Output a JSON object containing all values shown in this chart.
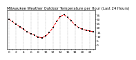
{
  "title": "Milwaukee Weather Outdoor Temperature per Hour (Last 24 Hours)",
  "hours": [
    0,
    1,
    2,
    3,
    4,
    5,
    6,
    7,
    8,
    9,
    10,
    11,
    12,
    13,
    14,
    15,
    16,
    17,
    18,
    19,
    20,
    21,
    22,
    23
  ],
  "temps": [
    30,
    27,
    24,
    21,
    18,
    15,
    13,
    11,
    9,
    8,
    10,
    14,
    20,
    27,
    33,
    35,
    32,
    28,
    23,
    20,
    18,
    17,
    16,
    15
  ],
  "line_color": "#ff0000",
  "marker_color": "#000000",
  "grid_color": "#888888",
  "bg_color": "#ffffff",
  "ylim_min": -5,
  "ylim_max": 40,
  "yticks": [
    0,
    5,
    10,
    15,
    20,
    25,
    30,
    35
  ],
  "ytick_labels": [
    "0",
    "5",
    "10",
    "15",
    "20",
    "25",
    "30",
    "35"
  ],
  "xticks": [
    0,
    1,
    2,
    3,
    4,
    5,
    6,
    7,
    8,
    9,
    10,
    11,
    12,
    13,
    14,
    15,
    16,
    17,
    18,
    19,
    20,
    21,
    22,
    23
  ],
  "title_fontsize": 3.8,
  "tick_fontsize": 3.2,
  "line_width": 0.7,
  "marker_size": 1.8
}
